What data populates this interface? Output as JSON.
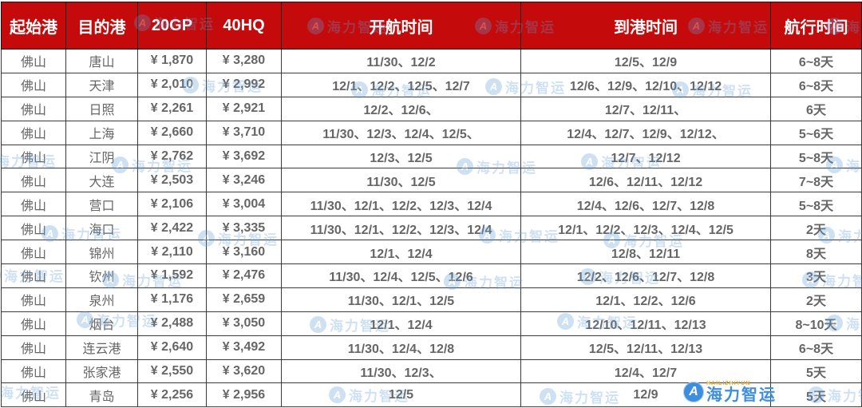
{
  "table": {
    "columns": [
      {
        "key": "origin",
        "label": "起始港"
      },
      {
        "key": "dest",
        "label": "目的港"
      },
      {
        "key": "gp20",
        "label": "20GP"
      },
      {
        "key": "hq40",
        "label": "40HQ"
      },
      {
        "key": "depart",
        "label": "开航时间"
      },
      {
        "key": "arrive",
        "label": "到港时间"
      },
      {
        "key": "duration",
        "label": "航行时间"
      }
    ],
    "rows": [
      {
        "origin": "佛山",
        "dest": "唐山",
        "gp20": "¥ 1,870",
        "hq40": "¥ 3,280",
        "depart": "11/30、12/2",
        "arrive": "12/5、12/9",
        "duration": "6~8天"
      },
      {
        "origin": "佛山",
        "dest": "天津",
        "gp20": "¥ 2,010",
        "hq40": "¥ 2,992",
        "depart": "12/1、12/2、12/5、12/7",
        "arrive": "12/6、12/9、12/10、12/12",
        "duration": "6~8天"
      },
      {
        "origin": "佛山",
        "dest": "日照",
        "gp20": "¥ 2,261",
        "hq40": "¥ 2,921",
        "depart": "12/2、12/6、",
        "arrive": "12/7、12/11、",
        "duration": "6天"
      },
      {
        "origin": "佛山",
        "dest": "上海",
        "gp20": "¥ 2,660",
        "hq40": "¥ 3,710",
        "depart": "11/30、12/3、12/4、12/5、",
        "arrive": "12/4、12/7、12/9、12/12、",
        "duration": "5~6天"
      },
      {
        "origin": "佛山",
        "dest": "江阴",
        "gp20": "¥ 2,762",
        "hq40": "¥ 3,692",
        "depart": "12/3、12/5",
        "arrive": "12/7、12/12",
        "duration": "5~8天"
      },
      {
        "origin": "佛山",
        "dest": "大连",
        "gp20": "¥ 2,503",
        "hq40": "¥ 3,246",
        "depart": "11/30、12/5",
        "arrive": "12/6、12/11、12/12",
        "duration": "7~8天"
      },
      {
        "origin": "佛山",
        "dest": "营口",
        "gp20": "¥ 2,106",
        "hq40": "¥ 3,004",
        "depart": "11/30、12/1、12/2、12/3、12/4",
        "arrive": "12/4、12/6、12/7、12/8",
        "duration": "5~8天"
      },
      {
        "origin": "佛山",
        "dest": "海口",
        "gp20": "¥ 2,422",
        "hq40": "¥ 3,335",
        "depart": "11/30、12/1、12/2、12/3、12/4",
        "arrive": "12/1、12/2、12/3、12/4、12/5",
        "duration": "2天"
      },
      {
        "origin": "佛山",
        "dest": "锦州",
        "gp20": "¥ 2,110",
        "hq40": "¥ 3,160",
        "depart": "12/1、12/4",
        "arrive": "12/8、12/11",
        "duration": "8天"
      },
      {
        "origin": "佛山",
        "dest": "钦州",
        "gp20": "¥ 1,592",
        "hq40": "¥ 2,476",
        "depart": "11/30、12/4、12/5、12/6",
        "arrive": "12/2、12/6、12/7、12/8",
        "duration": "3天"
      },
      {
        "origin": "佛山",
        "dest": "泉州",
        "gp20": "¥ 1,176",
        "hq40": "¥ 2,659",
        "depart": "11/30、12/1、12/5",
        "arrive": "12/1、12/2、12/6",
        "duration": "2天"
      },
      {
        "origin": "佛山",
        "dest": "烟台",
        "gp20": "¥ 2,488",
        "hq40": "¥ 3,050",
        "depart": "12/1、12/4",
        "arrive": "12/10、12/11、12/13",
        "duration": "8~10天"
      },
      {
        "origin": "佛山",
        "dest": "连云港",
        "gp20": "¥ 2,640",
        "hq40": "¥ 3,492",
        "depart": "11/30、12/4、12/8",
        "arrive": "12/5、12/11、12/13",
        "duration": "6~8天"
      },
      {
        "origin": "佛山",
        "dest": "张家港",
        "gp20": "¥ 2,550",
        "hq40": "¥ 3,620",
        "depart": "11/30、12/3、",
        "arrive": "12/4、12/7",
        "duration": "5天"
      },
      {
        "origin": "佛山",
        "dest": "青岛",
        "gp20": "¥ 2,256",
        "hq40": "¥ 2,956",
        "depart": "12/5",
        "arrive": "12/9",
        "duration": "5天"
      }
    ]
  },
  "watermark": {
    "brand": "海力智运",
    "icon_letter": "A"
  },
  "logo": {
    "brand": "海力智运",
    "brand_en": "HAILIZHIYUN",
    "icon_letter": "A"
  },
  "colors": {
    "header_bg": "#C40A0A",
    "header_text": "#FFFFFF",
    "price_orange": "#F4731C",
    "body_text_gray": "#666666",
    "date_text_gray": "#595959",
    "border": "#3A3A3A",
    "watermark_blue": "#5B9BD5",
    "logo_blue": "#3E8EDE",
    "logo_orange": "#F5A623"
  }
}
